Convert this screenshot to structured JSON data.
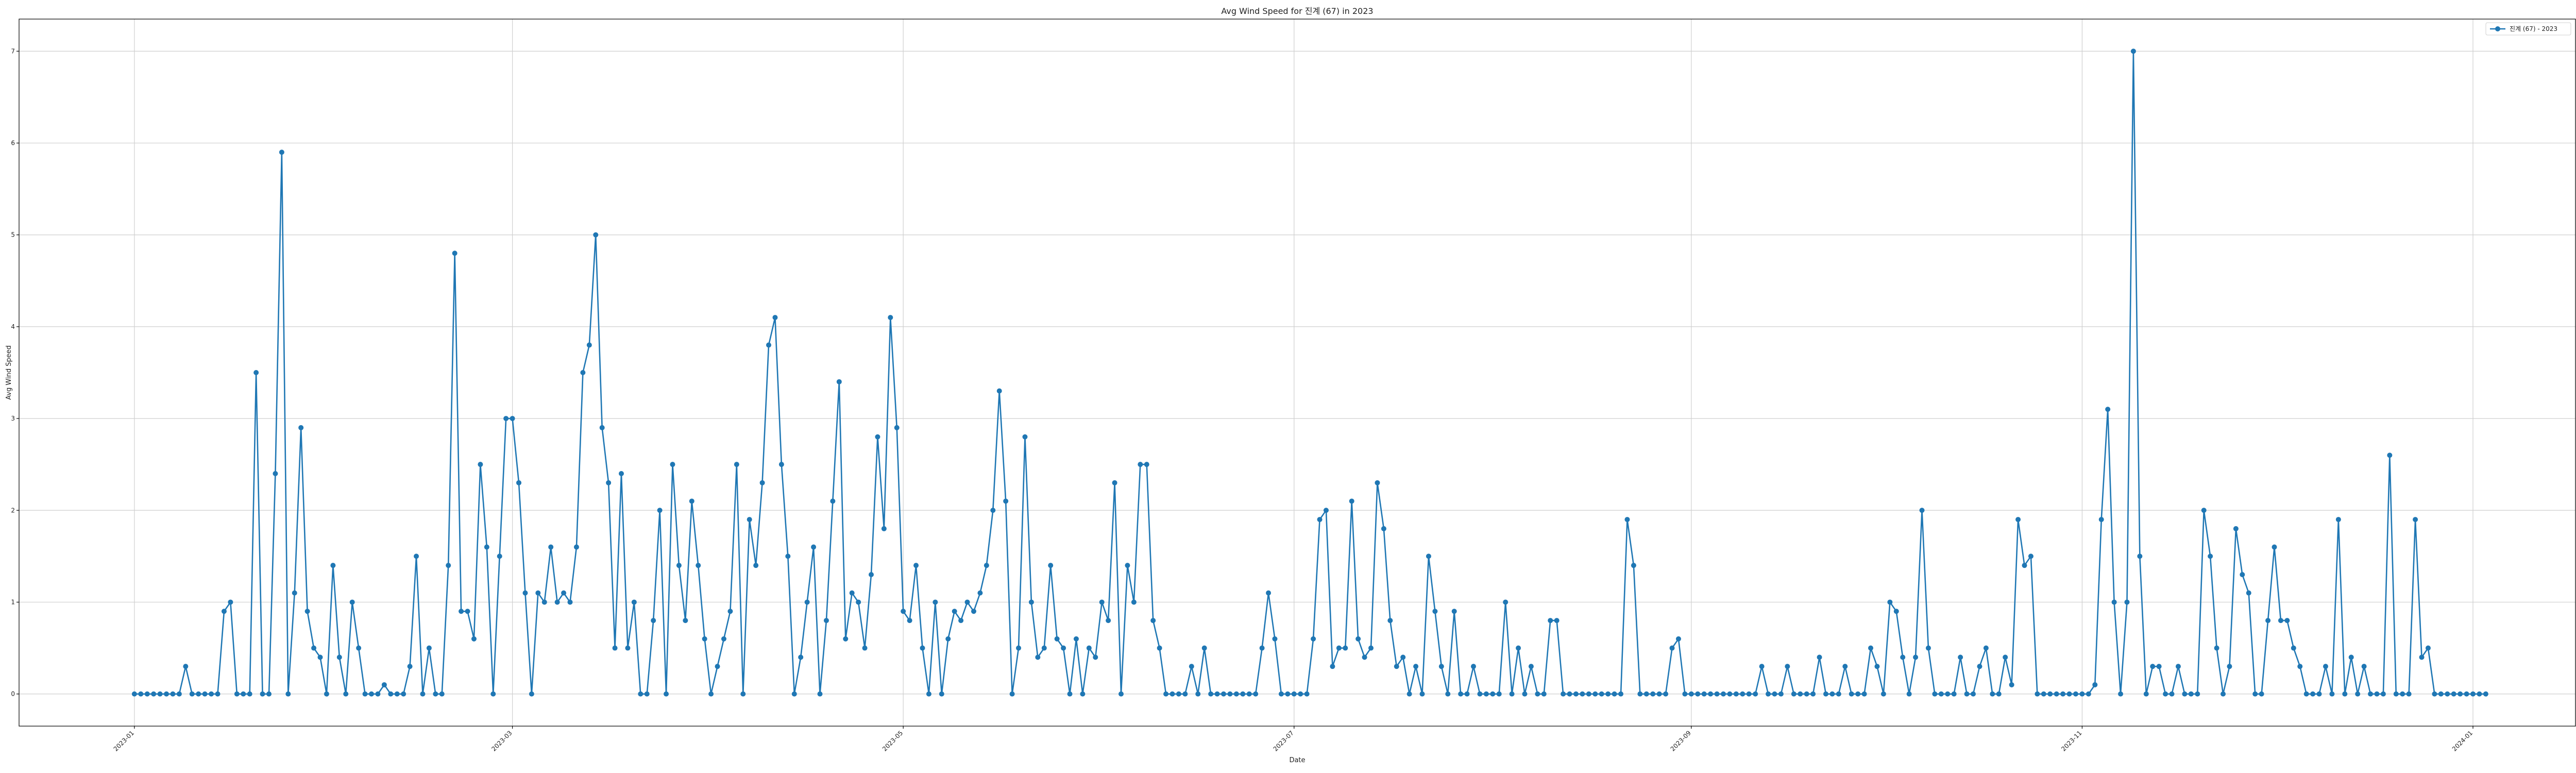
{
  "chart_data": {
    "type": "line",
    "title": "Avg Wind Speed for 진계 (67) in 2023",
    "xlabel": "Date",
    "ylabel": "Avg Wind Speed",
    "xlim": [
      "2022-12-14",
      "2024-01-17"
    ],
    "ylim": [
      -0.35,
      7.35
    ],
    "x_ticks": [
      "2023-01",
      "2023-03",
      "2023-05",
      "2023-07",
      "2023-09",
      "2023-11",
      "2024-01"
    ],
    "x_tick_dates": [
      "2023-01-01",
      "2023-03-01",
      "2023-05-01",
      "2023-07-01",
      "2023-09-01",
      "2023-11-01",
      "2024-01-01"
    ],
    "y_ticks": [
      0,
      1,
      2,
      3,
      4,
      5,
      6,
      7
    ],
    "grid": true,
    "legend_position": "top-right",
    "colors": {
      "series": "#1f77b4"
    },
    "series": [
      {
        "name": "진계 (67) - 2023",
        "start_date": "2023-01-01",
        "values": [
          0,
          0,
          0,
          0,
          0,
          0,
          0,
          0,
          0.3,
          0,
          0,
          0,
          0,
          0,
          0.9,
          1.0,
          0,
          0,
          0,
          3.5,
          0,
          0,
          2.4,
          5.9,
          0,
          1.1,
          2.9,
          0.9,
          0.5,
          0.4,
          0,
          1.4,
          0.4,
          0,
          1.0,
          0.5,
          0,
          0,
          0,
          0.1,
          0,
          0,
          0,
          0.3,
          1.5,
          0,
          0.5,
          0,
          0,
          1.4,
          4.8,
          0.9,
          0.9,
          0.6,
          2.5,
          1.6,
          0,
          1.5,
          3.0,
          3.0,
          2.3,
          1.1,
          0,
          1.1,
          1.0,
          1.6,
          1.0,
          1.1,
          1.0,
          1.6,
          3.5,
          3.8,
          5.0,
          2.9,
          2.3,
          0.5,
          2.4,
          0.5,
          1.0,
          0,
          0,
          0.8,
          2.0,
          0,
          2.5,
          1.4,
          0.8,
          2.1,
          1.4,
          0.6,
          0,
          0.3,
          0.6,
          0.9,
          2.5,
          0,
          1.9,
          1.4,
          2.3,
          3.8,
          4.1,
          2.5,
          1.5,
          0,
          0.4,
          1.0,
          1.6,
          0,
          0.8,
          2.1,
          3.4,
          0.6,
          1.1,
          1.0,
          0.5,
          1.3,
          2.8,
          1.8,
          4.1,
          2.9,
          0.9,
          0.8,
          1.4,
          0.5,
          0,
          1.0,
          0,
          0.6,
          0.9,
          0.8,
          1.0,
          0.9,
          1.1,
          1.4,
          2.0,
          3.3,
          2.1,
          0,
          0.5,
          2.8,
          1.0,
          0.4,
          0.5,
          1.4,
          0.6,
          0.5,
          0,
          0.6,
          0,
          0.5,
          0.4,
          1.0,
          0.8,
          2.3,
          0,
          1.4,
          1.0,
          2.5,
          2.5,
          0.8,
          0.5,
          0,
          0,
          0,
          0,
          0.3,
          0,
          0.5,
          0,
          0,
          0,
          0,
          0,
          0,
          0,
          0,
          0.5,
          1.1,
          0.6,
          0,
          0,
          0,
          0,
          0,
          0.6,
          1.9,
          2.0,
          0.3,
          0.5,
          0.5,
          2.1,
          0.6,
          0.4,
          0.5,
          2.3,
          1.8,
          0.8,
          0.3,
          0.4,
          0,
          0.3,
          0,
          1.5,
          0.9,
          0.3,
          0,
          0.9,
          0,
          0,
          0.3,
          0,
          0,
          0,
          0,
          1.0,
          0,
          0.5,
          0,
          0.3,
          0,
          0,
          0.8,
          0.8,
          0,
          0,
          0,
          0,
          0,
          0,
          0,
          0,
          0,
          0,
          1.9,
          1.4,
          0,
          0,
          0,
          0,
          0,
          0.5,
          0.6,
          0,
          0,
          0,
          0,
          0,
          0,
          0,
          0,
          0,
          0,
          0,
          0,
          0.3,
          0,
          0,
          0,
          0.3,
          0,
          0,
          0,
          0,
          0.4,
          0,
          0,
          0,
          0.3,
          0,
          0,
          0,
          0.5,
          0.3,
          0,
          1.0,
          0.9,
          0.4,
          0,
          0.4,
          2.0,
          0.5,
          0,
          0,
          0,
          0,
          0.4,
          0,
          0,
          0.3,
          0.5,
          0,
          0,
          0.4,
          0.1,
          1.9,
          1.4,
          1.5,
          0,
          0,
          0,
          0,
          0,
          0,
          0,
          0,
          0,
          0.1,
          1.9,
          3.1,
          1.0,
          0,
          1.0,
          7.0,
          1.5,
          0,
          0.3,
          0.3,
          0,
          0,
          0.3,
          0,
          0,
          0,
          2.0,
          1.5,
          0.5,
          0,
          0.3,
          1.8,
          1.3,
          1.1,
          0,
          0,
          0.8,
          1.6,
          0.8,
          0.8,
          0.5,
          0.3,
          0,
          0,
          0,
          0.3,
          0,
          1.9,
          0,
          0.4,
          0,
          0.3,
          0,
          0,
          0,
          2.6,
          0,
          0,
          0,
          1.9,
          0.4,
          0.5,
          0,
          0,
          0,
          0,
          0,
          0,
          0,
          0,
          0
        ]
      }
    ]
  }
}
